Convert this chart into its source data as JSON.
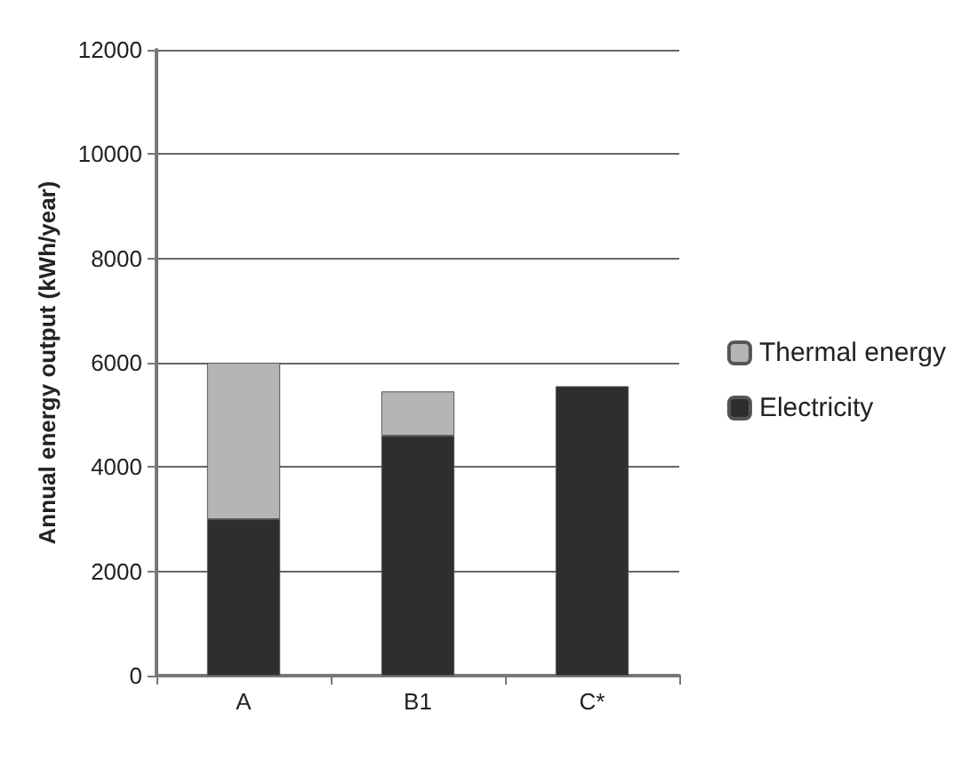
{
  "chart_data": {
    "type": "bar",
    "stacked": true,
    "ylabel": "Annual energy output (kWh/year)",
    "categories": [
      "A",
      "B1",
      "C*"
    ],
    "series": [
      {
        "name": "Electricity",
        "color": "#2e2e2e",
        "values": [
          3000,
          4600,
          5550
        ]
      },
      {
        "name": "Thermal energy",
        "color": "#b5b5b5",
        "values": [
          3000,
          850,
          null
        ]
      }
    ],
    "ylim": [
      0,
      12000
    ],
    "yticks": [
      0,
      2000,
      4000,
      6000,
      8000,
      10000,
      12000
    ],
    "grid": "y",
    "legend": "right"
  }
}
